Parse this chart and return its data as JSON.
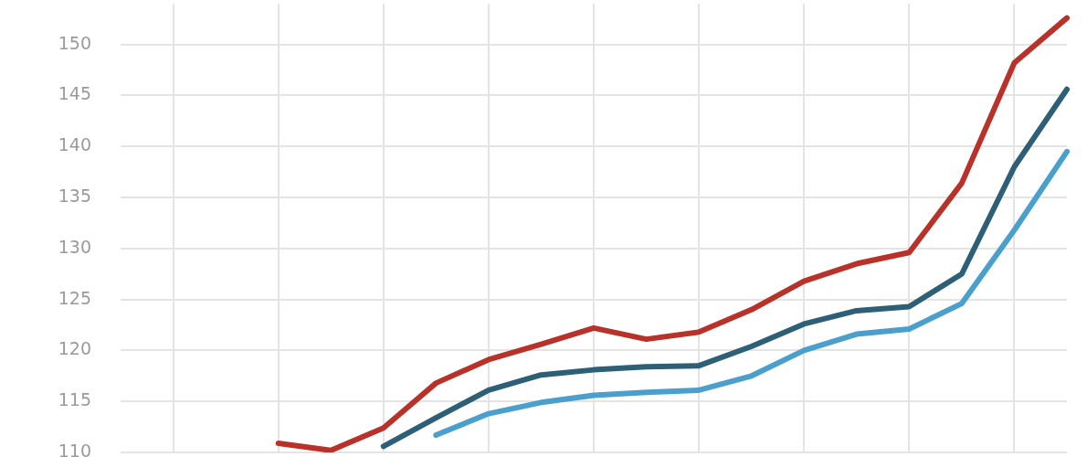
{
  "chart_data": {
    "type": "line",
    "categories": [
      null,
      null,
      null,
      null,
      null,
      null,
      null,
      null,
      null,
      null,
      null,
      null,
      null,
      null,
      null,
      null,
      null,
      null,
      null
    ],
    "series": [
      {
        "color": "#b8322a",
        "values": [
          null,
          null,
          null,
          110.9,
          110.2,
          112.4,
          116.8,
          119.1,
          120.6,
          122.2,
          121.1,
          121.8,
          124.0,
          126.8,
          128.5,
          129.6,
          136.4,
          148.2,
          152.6
        ]
      },
      {
        "color": "#2d5f76",
        "values": [
          null,
          null,
          null,
          null,
          null,
          110.6,
          113.4,
          116.1,
          117.6,
          118.1,
          118.4,
          118.5,
          120.4,
          122.6,
          123.9,
          124.3,
          127.5,
          138.0,
          145.6
        ]
      },
      {
        "color": "#4a9fcd",
        "values": [
          null,
          null,
          null,
          null,
          null,
          null,
          111.7,
          113.8,
          114.9,
          115.6,
          115.9,
          116.1,
          117.5,
          120.0,
          121.6,
          122.1,
          124.6,
          131.8,
          139.5
        ]
      }
    ],
    "ylim": [
      110,
      154
    ],
    "yticks": [
      110,
      115,
      120,
      125,
      130,
      135,
      140,
      145,
      150
    ],
    "grid": true,
    "tick_labels": "y",
    "legend": false,
    "marker": "none",
    "line_style": "solid"
  }
}
